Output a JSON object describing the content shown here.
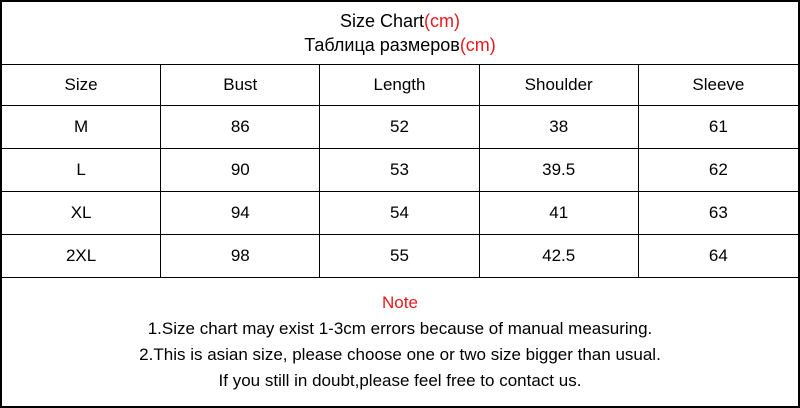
{
  "colors": {
    "accent_red": "#e8191c",
    "border": "#000000",
    "text": "#000000",
    "background": "#ffffff"
  },
  "header": {
    "title_en": "Size Chart",
    "title_en_unit": "(cm)",
    "title_ru": "Таблица размеров",
    "title_ru_unit": "(cm)"
  },
  "table": {
    "headers": [
      "Size",
      "Bust",
      "Length",
      "Shoulder",
      "Sleeve"
    ],
    "rows": [
      [
        "M",
        "86",
        "52",
        "38",
        "61"
      ],
      [
        "L",
        "90",
        "53",
        "39.5",
        "62"
      ],
      [
        "XL",
        "94",
        "54",
        "41",
        "63"
      ],
      [
        "2XL",
        "98",
        "55",
        "42.5",
        "64"
      ]
    ]
  },
  "note": {
    "heading": "Note",
    "lines": [
      "1.Size chart may exist 1-3cm errors because of manual measuring.",
      "2.This is asian size, please choose one or two size bigger than usual.",
      "If you still in doubt,please feel free to contact us."
    ]
  },
  "chart_data": {
    "type": "table",
    "title": "Size Chart(cm)",
    "subtitle": "Таблица размеров(cm)",
    "columns": [
      "Size",
      "Bust",
      "Length",
      "Shoulder",
      "Sleeve"
    ],
    "rows": [
      [
        "M",
        86,
        52,
        38,
        61
      ],
      [
        "L",
        90,
        53,
        39.5,
        62
      ],
      [
        "XL",
        94,
        54,
        41,
        63
      ],
      [
        "2XL",
        98,
        55,
        42.5,
        64
      ]
    ],
    "notes": [
      "1.Size chart may exist 1-3cm errors because of manual measuring.",
      "2.This is asian size, please choose one or two size bigger than usual.",
      "If you still in doubt,please feel free to contact us."
    ]
  }
}
